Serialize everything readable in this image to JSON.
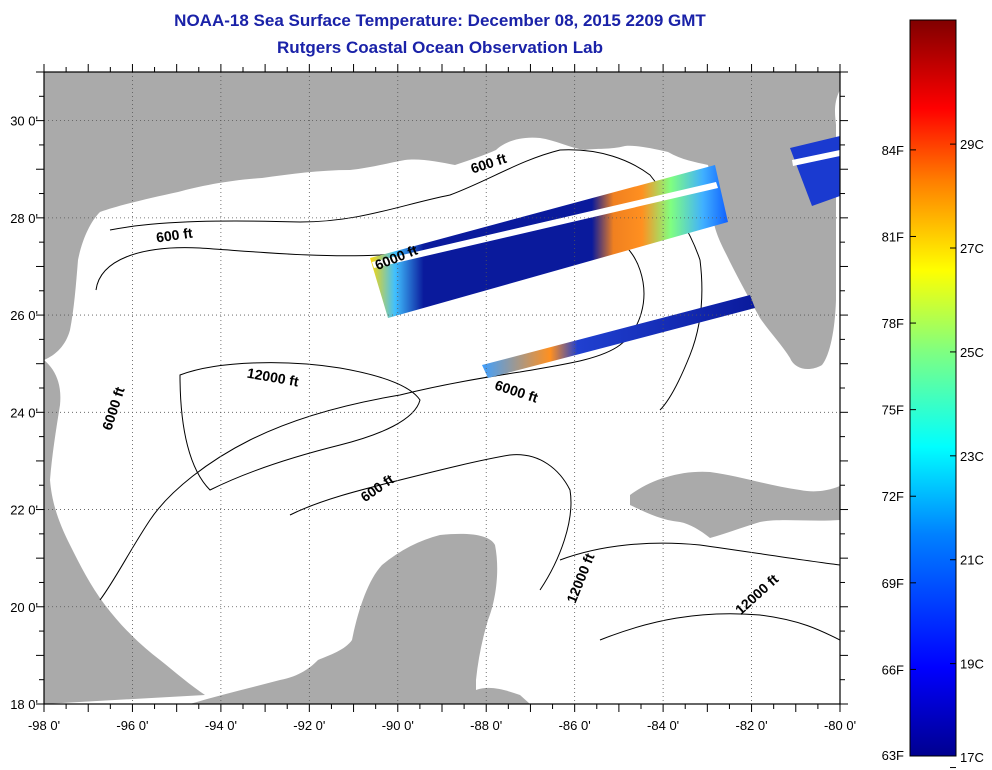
{
  "title": "NOAA-18 Sea Surface Temperature:  December 08, 2015 2209 GMT",
  "subtitle": "Rutgers Coastal Ocean Observation Lab",
  "axes": {
    "lon_ticks": [
      "-98 0'",
      "-96 0'",
      "-94 0'",
      "-92 0'",
      "-90 0'",
      "-88 0'",
      "-86 0'",
      "-84 0'",
      "-82 0'",
      "-80 0'"
    ],
    "lat_ticks": [
      "18 0'",
      "20 0'",
      "22 0'",
      "24 0'",
      "26 0'",
      "28 0'",
      "30 0'"
    ],
    "lon_range": [
      -98,
      -80
    ],
    "lat_range": [
      18,
      31
    ]
  },
  "contour_labels": [
    {
      "text": "600 ft"
    },
    {
      "text": "600 ft"
    },
    {
      "text": "600 ft"
    },
    {
      "text": "6000 ft"
    },
    {
      "text": "6000 ft"
    },
    {
      "text": "6000 ft"
    },
    {
      "text": "12000 ft"
    },
    {
      "text": "12000 ft"
    },
    {
      "text": "12000 ft"
    }
  ],
  "colorbar": {
    "fahrenheit": [
      "84F",
      "81F",
      "78F",
      "75F",
      "72F",
      "69F",
      "66F",
      "63F"
    ],
    "celsius": [
      "29C",
      "27C",
      "25C",
      "23C",
      "21C",
      "19C",
      "17C"
    ],
    "colors": [
      "#00008f",
      "#0000ff",
      "#0080ff",
      "#00ffff",
      "#80ff80",
      "#ffff00",
      "#ff8000",
      "#ff0000",
      "#800000"
    ]
  },
  "colors": {
    "land": "#aaaaaa",
    "ocean": "#ffffff",
    "title": "#1a22a8",
    "swath_cold": "#0a1a9c"
  }
}
